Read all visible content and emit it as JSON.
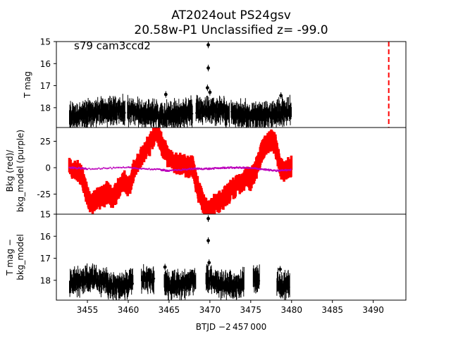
{
  "title_line1": "AT2024out  PS24gsv",
  "title_line2": "20.58w-P1 Unclassified z= -99.0",
  "annotation": "s79 cam3ccd2",
  "xlabel": "BTJD −2 457 000",
  "x_ticks": [
    "3455",
    "3460",
    "3465",
    "3470",
    "3475",
    "3480",
    "3485",
    "3490"
  ],
  "chart_data": [
    {
      "type": "scatter",
      "panel": "top",
      "ylabel": "T mag",
      "xlim": [
        3451.2,
        3494.0
      ],
      "ylim": [
        18.9,
        15.0
      ],
      "y_inverted": true,
      "y_ticks": [
        15,
        16,
        17,
        18
      ],
      "point_color": "#000000",
      "marker_line": {
        "x": 3491.9,
        "color": "#ff0000",
        "style": "dashed"
      },
      "segments": [
        [
          3452.8,
          3459.6
        ],
        [
          3459.9,
          3467.9
        ],
        [
          3468.3,
          3472.4
        ],
        [
          3472.6,
          3480.0
        ]
      ],
      "baseline_mag": 18.25,
      "outliers": [
        [
          3469.8,
          15.15
        ],
        [
          3469.8,
          16.2
        ],
        [
          3469.7,
          17.1
        ],
        [
          3464.6,
          17.4
        ],
        [
          3478.7,
          17.45
        ],
        [
          3470.0,
          17.3
        ]
      ]
    },
    {
      "type": "scatter",
      "panel": "middle",
      "ylabel": "Bkg (red)/\nbkg_model (purple)",
      "xlim": [
        3451.2,
        3494.0
      ],
      "ylim": [
        -44,
        38
      ],
      "y_ticks": [
        25,
        0,
        -25
      ],
      "series": [
        {
          "name": "Bkg",
          "color": "#ff0000",
          "points": [
            [
              3452.8,
              0
            ],
            [
              3454.0,
              -3
            ],
            [
              3454.5,
              -12
            ],
            [
              3455.0,
              -28
            ],
            [
              3455.5,
              -33
            ],
            [
              3456.0,
              -30
            ],
            [
              3457.0,
              -27
            ],
            [
              3457.5,
              -22
            ],
            [
              3458.0,
              -29
            ],
            [
              3459.0,
              -18
            ],
            [
              3459.5,
              -13
            ],
            [
              3460.0,
              -20
            ],
            [
              3460.6,
              -5
            ],
            [
              3461.5,
              8
            ],
            [
              3462.0,
              17
            ],
            [
              3462.8,
              24
            ],
            [
              3463.5,
              33
            ],
            [
              3464.2,
              20
            ],
            [
              3465.0,
              8
            ],
            [
              3466.0,
              5
            ],
            [
              3467.0,
              2
            ],
            [
              3467.9,
              1
            ],
            [
              3468.3,
              -15
            ],
            [
              3469.0,
              -30
            ],
            [
              3469.5,
              -38
            ],
            [
              3470.0,
              -43
            ],
            [
              3470.5,
              -35
            ],
            [
              3471.2,
              -32
            ],
            [
              3472.0,
              -27
            ],
            [
              3472.6,
              -22
            ],
            [
              3473.5,
              -15
            ],
            [
              3474.0,
              -12
            ],
            [
              3474.6,
              -9
            ],
            [
              3475.0,
              -11
            ],
            [
              3475.6,
              -3
            ],
            [
              3476.0,
              8
            ],
            [
              3476.5,
              17
            ],
            [
              3477.0,
              23
            ],
            [
              3477.5,
              26
            ],
            [
              3478.0,
              22
            ],
            [
              3478.6,
              0
            ],
            [
              3479.2,
              -3
            ],
            [
              3480.0,
              0
            ]
          ]
        },
        {
          "name": "bkg_model",
          "color": "#bb00bb",
          "points": [
            [
              3452.8,
              0
            ],
            [
              3455.0,
              -1
            ],
            [
              3460.0,
              0
            ],
            [
              3464.0,
              -2
            ],
            [
              3465.0,
              -3
            ],
            [
              3468.0,
              -1
            ],
            [
              3470.0,
              -1
            ],
            [
              3472.0,
              0
            ],
            [
              3474.0,
              0
            ],
            [
              3476.0,
              -1
            ],
            [
              3478.0,
              -3
            ],
            [
              3480.0,
              -2
            ]
          ]
        }
      ]
    },
    {
      "type": "scatter",
      "panel": "bottom",
      "ylabel": "T mag −\nbkg_model",
      "xlim": [
        3451.2,
        3494.0
      ],
      "ylim": [
        18.9,
        15.0
      ],
      "y_inverted": true,
      "y_ticks": [
        15,
        16,
        17,
        18
      ],
      "point_color": "#000000",
      "segments": [
        [
          3452.8,
          3460.6
        ],
        [
          3461.6,
          3463.2
        ],
        [
          3464.4,
          3468.3
        ],
        [
          3469.5,
          3474.2
        ],
        [
          3475.3,
          3476.1
        ],
        [
          3478.2,
          3479.8
        ]
      ],
      "baseline_mag": 18.1,
      "outliers": [
        [
          3469.8,
          15.2
        ],
        [
          3469.8,
          16.2
        ],
        [
          3469.9,
          17.2
        ],
        [
          3464.5,
          17.4
        ],
        [
          3478.6,
          17.5
        ]
      ]
    }
  ]
}
